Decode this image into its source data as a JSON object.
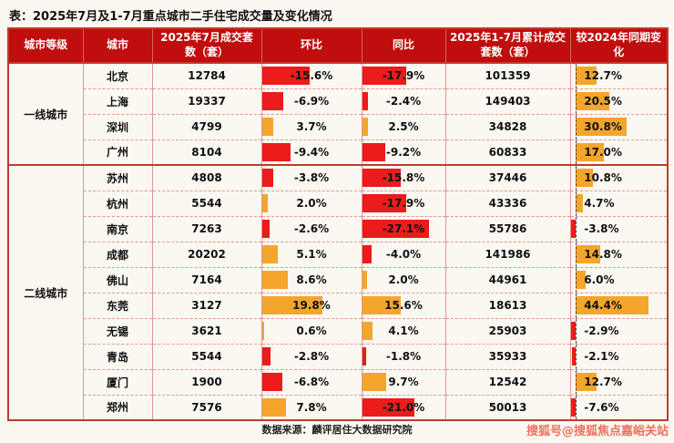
{
  "page": {
    "title": "表：2025年7月及1-7月重点城市二手住宅成交量及变化情况",
    "source": "数据来源：麟评居住大数据研究院",
    "watermark": "搜狐号@搜狐焦点嘉峪关站"
  },
  "colors": {
    "header_bg": "#C00D0D",
    "positive_bar": "#F4A52C",
    "negative_bar": "#EA1C1C",
    "table_border": "#C23A2F",
    "watermark_text": "#F0705C"
  },
  "table": {
    "headers": [
      "城市等级",
      "城市",
      "2025年7月成交套数（套）",
      "环比",
      "同比",
      "2025年1-7月累计成交套数（套）",
      "较2024年同期变化"
    ],
    "groups": [
      {
        "tier": "一线城市",
        "rows": [
          {
            "city": "北京",
            "jul": "12784",
            "mom": -15.6,
            "yoy": -17.9,
            "cum": "101359",
            "vs2024": 12.7
          },
          {
            "city": "上海",
            "jul": "19337",
            "mom": -6.9,
            "yoy": -2.4,
            "cum": "149403",
            "vs2024": 20.5
          },
          {
            "city": "深圳",
            "jul": "4799",
            "mom": 3.7,
            "yoy": 2.5,
            "cum": "34828",
            "vs2024": 30.8
          },
          {
            "city": "广州",
            "jul": "8104",
            "mom": -9.4,
            "yoy": -9.2,
            "cum": "60833",
            "vs2024": 17.0
          }
        ]
      },
      {
        "tier": "二线城市",
        "rows": [
          {
            "city": "苏州",
            "jul": "4808",
            "mom": -3.8,
            "yoy": -15.8,
            "cum": "37446",
            "vs2024": 10.8
          },
          {
            "city": "杭州",
            "jul": "5544",
            "mom": 2.0,
            "yoy": -17.9,
            "cum": "43336",
            "vs2024": 4.7
          },
          {
            "city": "南京",
            "jul": "7263",
            "mom": -2.6,
            "yoy": -27.1,
            "cum": "55786",
            "vs2024": -3.8
          },
          {
            "city": "成都",
            "jul": "20202",
            "mom": 5.1,
            "yoy": -4.0,
            "cum": "141986",
            "vs2024": 14.8
          },
          {
            "city": "佛山",
            "jul": "7164",
            "mom": 8.6,
            "yoy": 2.0,
            "cum": "44961",
            "vs2024": 6.0
          },
          {
            "city": "东莞",
            "jul": "3127",
            "mom": 19.8,
            "yoy": 15.6,
            "cum": "18613",
            "vs2024": 44.4
          },
          {
            "city": "无锡",
            "jul": "3621",
            "mom": 0.6,
            "yoy": 4.1,
            "cum": "25903",
            "vs2024": -2.9
          },
          {
            "city": "青岛",
            "jul": "5544",
            "mom": -2.8,
            "yoy": -1.8,
            "cum": "35933",
            "vs2024": -2.1
          },
          {
            "city": "厦门",
            "jul": "1900",
            "mom": -6.8,
            "yoy": 9.7,
            "cum": "12542",
            "vs2024": 12.7
          },
          {
            "city": "郑州",
            "jul": "7576",
            "mom": 7.8,
            "yoy": -21.0,
            "cum": "50013",
            "vs2024": -7.6
          }
        ]
      }
    ]
  },
  "chart_data": {
    "type": "table",
    "title": "表：2025年7月及1-7月重点城市二手住宅成交量及变化情况",
    "columns": [
      "城市等级",
      "城市",
      "2025年7月成交套数（套）",
      "环比",
      "同比",
      "2025年1-7月累计成交套数（套）",
      "较2024年同期变化"
    ],
    "rows": [
      [
        "一线城市",
        "北京",
        12784,
        -15.6,
        -17.9,
        101359,
        12.7
      ],
      [
        "一线城市",
        "上海",
        19337,
        -6.9,
        -2.4,
        149403,
        20.5
      ],
      [
        "一线城市",
        "深圳",
        4799,
        3.7,
        2.5,
        34828,
        30.8
      ],
      [
        "一线城市",
        "广州",
        8104,
        -9.4,
        -9.2,
        60833,
        17.0
      ],
      [
        "二线城市",
        "苏州",
        4808,
        -3.8,
        -15.8,
        37446,
        10.8
      ],
      [
        "二线城市",
        "杭州",
        5544,
        2.0,
        -17.9,
        43336,
        4.7
      ],
      [
        "二线城市",
        "南京",
        7263,
        -2.6,
        -27.1,
        55786,
        -3.8
      ],
      [
        "二线城市",
        "成都",
        20202,
        5.1,
        -4.0,
        141986,
        14.8
      ],
      [
        "二线城市",
        "佛山",
        7164,
        8.6,
        2.0,
        44961,
        6.0
      ],
      [
        "二线城市",
        "东莞",
        3127,
        19.8,
        15.6,
        18613,
        44.4
      ],
      [
        "二线城市",
        "无锡",
        3621,
        0.6,
        4.1,
        25903,
        -2.9
      ],
      [
        "二线城市",
        "青岛",
        5544,
        -2.8,
        -1.8,
        35933,
        -2.1
      ],
      [
        "二线城市",
        "厦门",
        1900,
        -6.8,
        9.7,
        12542,
        12.7
      ],
      [
        "二线城市",
        "郑州",
        7576,
        7.8,
        -21.0,
        50013,
        -7.6
      ]
    ],
    "percent_columns": [
      "环比",
      "同比",
      "较2024年同期变化"
    ],
    "bar_style": "in-cell data bars: orange = positive, red = negative; last column has dashed zero-axis near left edge",
    "legend_position": "none",
    "grid": "red dashed row separators, solid red column separators"
  }
}
